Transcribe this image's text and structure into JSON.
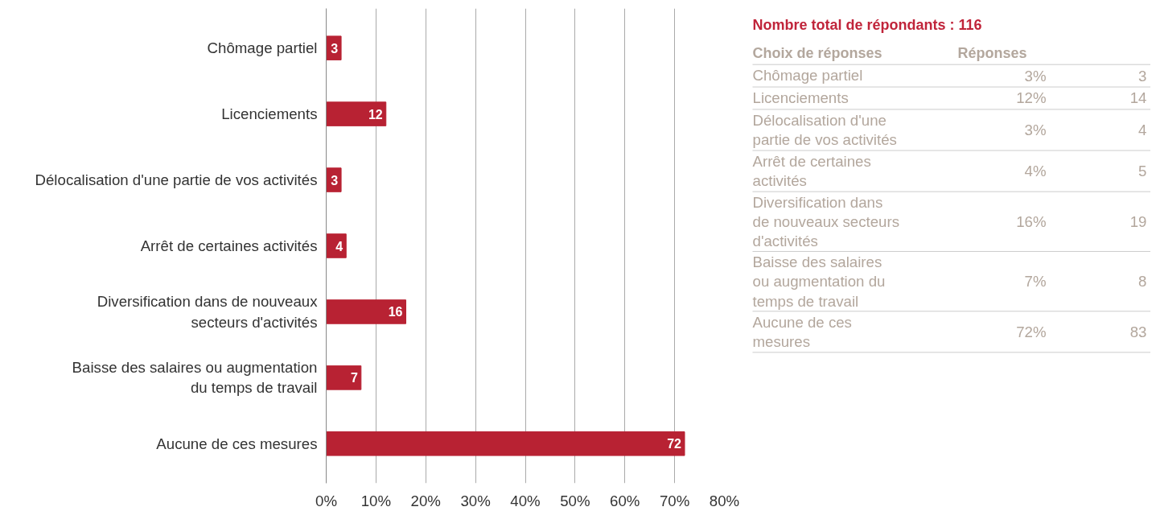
{
  "chart_data": [
    {
      "type": "bar",
      "orientation": "horizontal",
      "categories": [
        "Chômage partiel",
        "Licenciements",
        "Délocalisation d'une partie de vos activités",
        "Arrêt de certaines activités",
        "Diversification dans de nouveaux\nsecteurs d'activités",
        "Baisse des salaires ou augmentation\ndu temps de travail",
        "Aucune de ces mesures"
      ],
      "values": [
        3,
        12,
        3,
        4,
        16,
        7,
        72
      ],
      "color": "#b82233",
      "data_labels": true,
      "grid": "x",
      "xlim": [
        0,
        80
      ],
      "xticks": [
        {
          "value": 0,
          "label": "0%"
        },
        {
          "value": 10,
          "label": "10%"
        },
        {
          "value": 20,
          "label": "20%"
        },
        {
          "value": 30,
          "label": "30%"
        },
        {
          "value": 40,
          "label": "40%"
        },
        {
          "value": 50,
          "label": "50%"
        },
        {
          "value": 60,
          "label": "60%"
        },
        {
          "value": 70,
          "label": "70%"
        },
        {
          "value": 80,
          "label": "80%"
        }
      ]
    },
    {
      "type": "other",
      "title": "Nombre total de répondants : 116",
      "annotations": [
        "Choix de réponses",
        "Réponses",
        "Chômage partiel",
        "3%",
        "3",
        "Licenciements",
        "12%",
        "14",
        "Délocalisation d'une\npartie de vos activités",
        "3%",
        "4",
        "Arrêt de certaines\nactivités",
        "4%",
        "5",
        "Diversification dans\nde nouveaux secteurs\nd'activités",
        "16%",
        "19",
        "Baisse des salaires\nou augmentation du\ntemps de travail",
        "7%",
        "8",
        "Aucune de ces\nmesures",
        "72%",
        "83"
      ]
    }
  ]
}
